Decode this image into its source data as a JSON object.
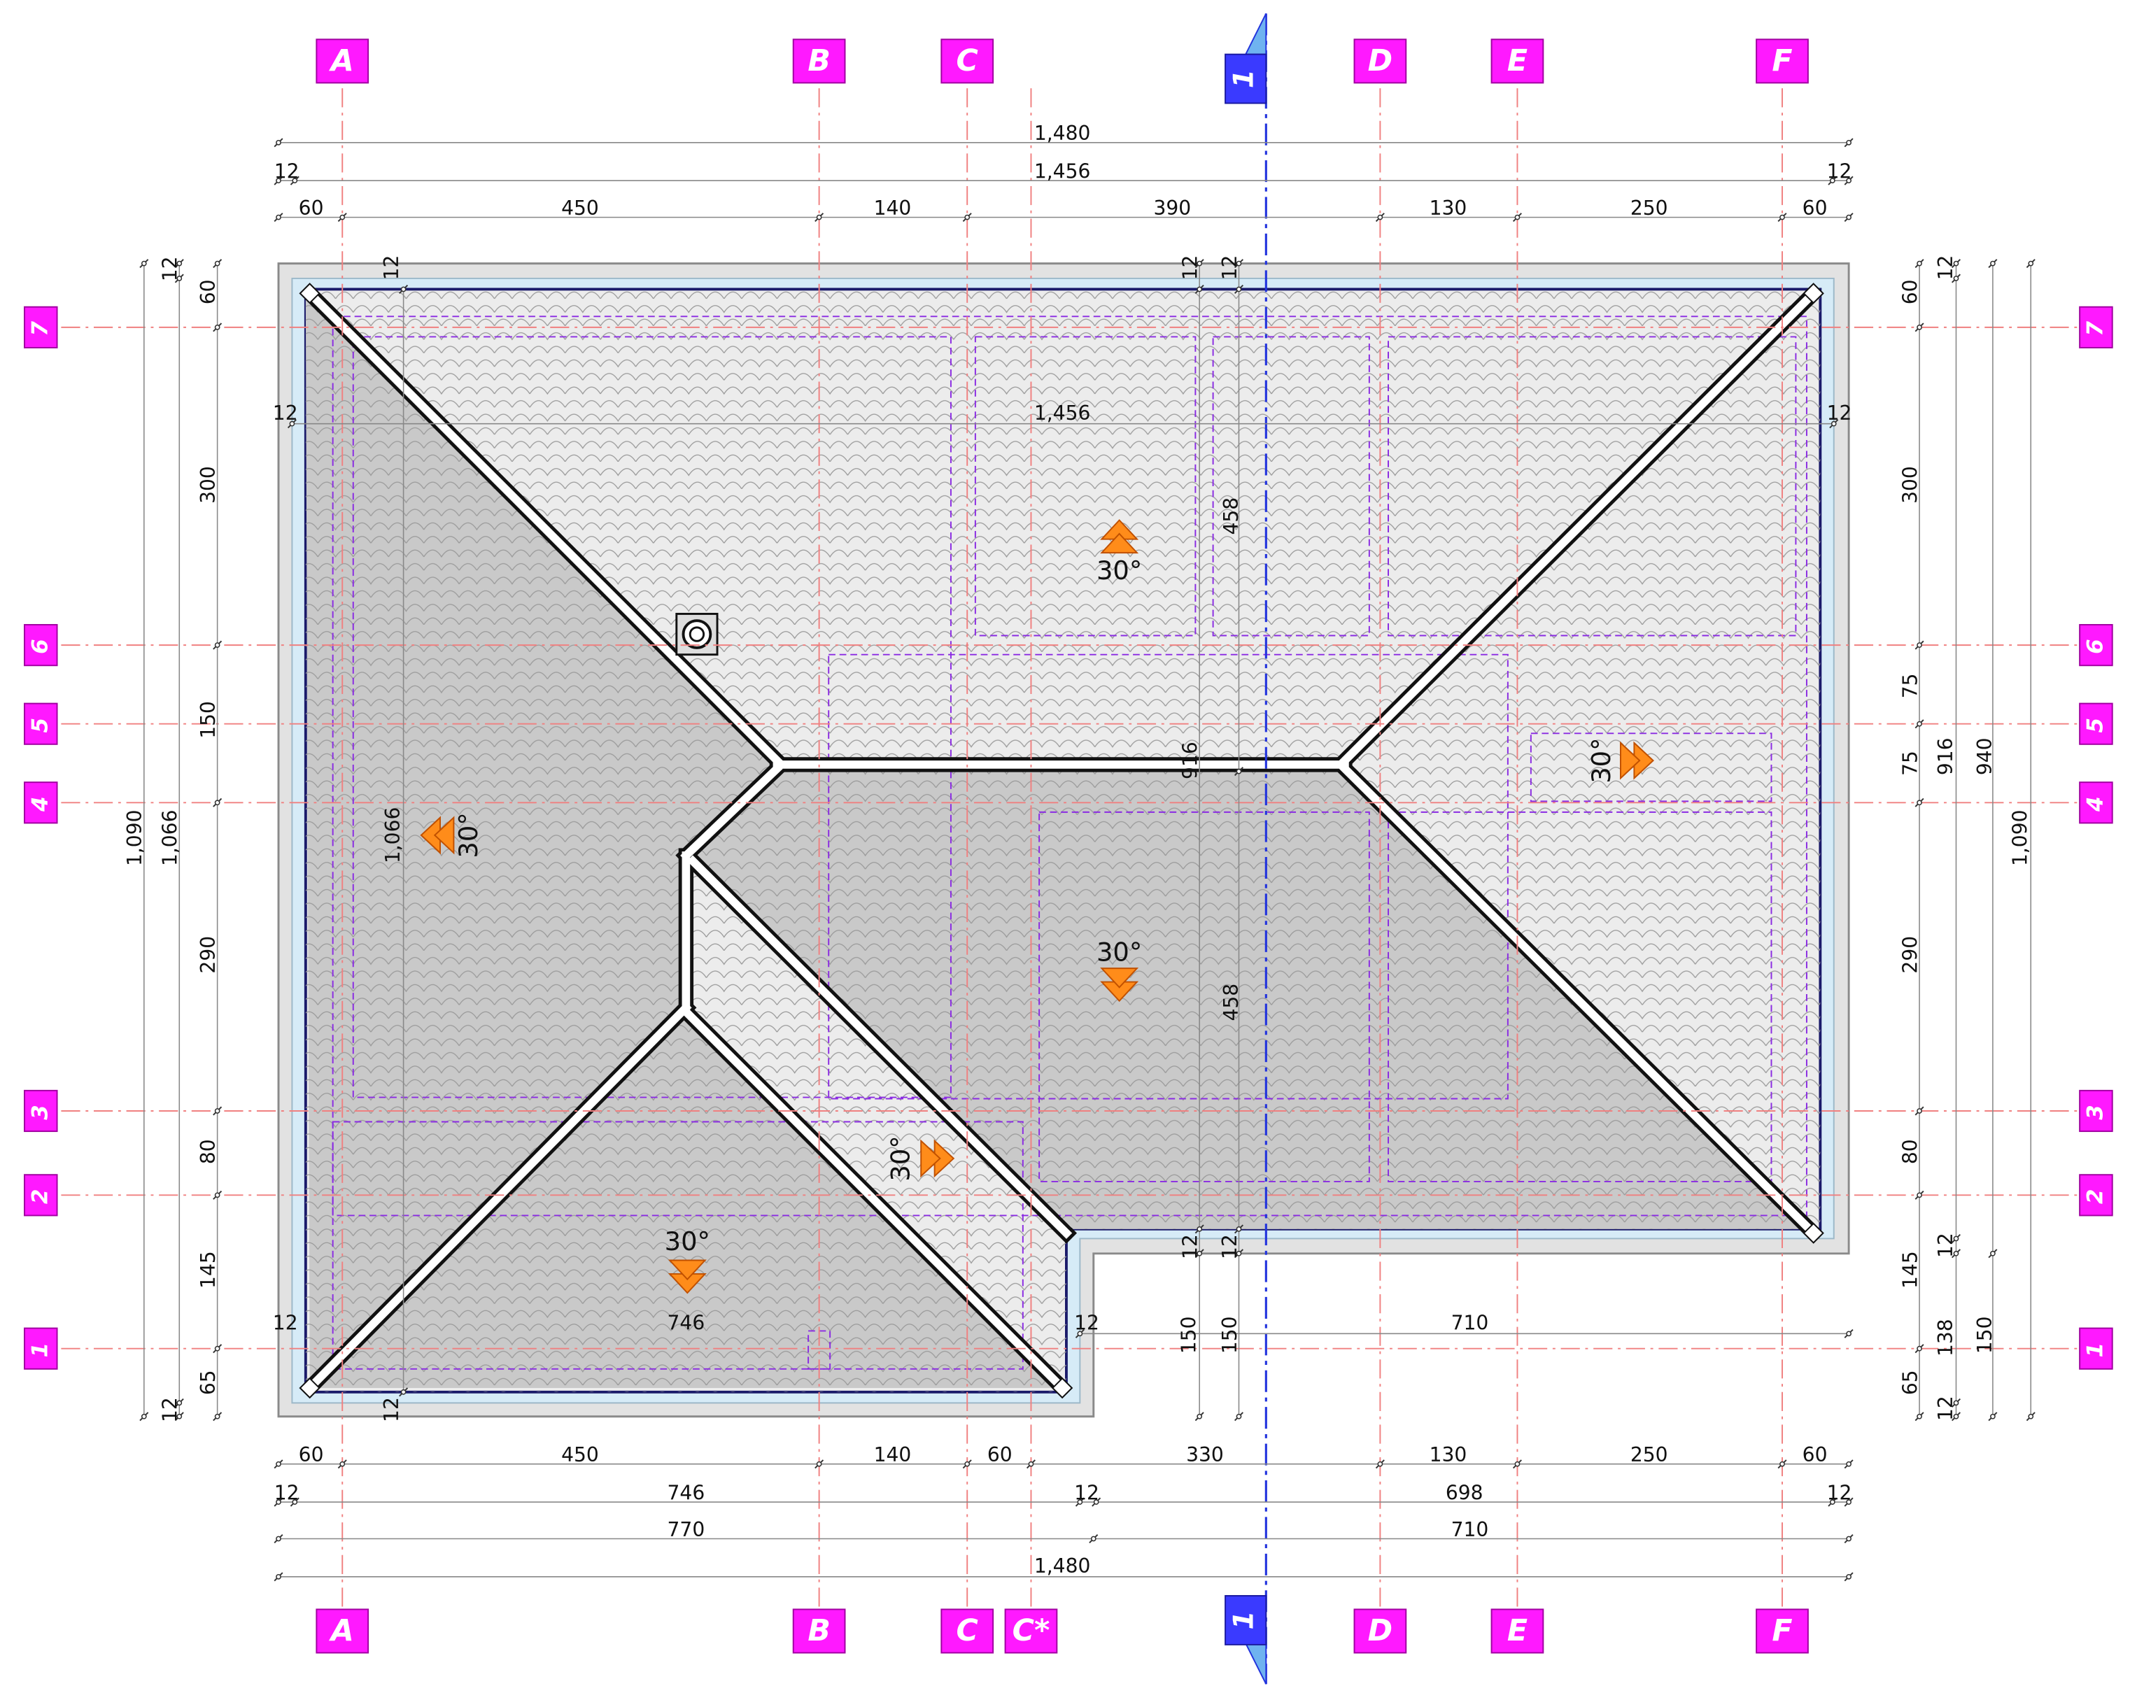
{
  "grid": {
    "columns_top": [
      "A",
      "B",
      "C",
      "D",
      "E",
      "F"
    ],
    "columns_bottom": [
      "A",
      "B",
      "C",
      "C*",
      "D",
      "E",
      "F"
    ],
    "rows": [
      "7",
      "6",
      "5",
      "4",
      "3",
      "2",
      "1"
    ]
  },
  "section_marker": "1",
  "dimensions": {
    "top": [
      [
        "1,480"
      ],
      [
        "12",
        "1,456",
        "12"
      ],
      [
        "60",
        "450",
        "140",
        "390",
        "130",
        "250",
        "60"
      ]
    ],
    "bottom": [
      [
        "60",
        "450",
        "140",
        "60",
        "330",
        "130",
        "250",
        "60"
      ],
      [
        "12",
        "746",
        "12",
        "698",
        "12"
      ],
      [
        "770",
        "710"
      ],
      [
        "1,480"
      ]
    ],
    "left": [
      [
        "1,090"
      ],
      [
        "12",
        "1,066",
        "12"
      ],
      [
        "60",
        "300",
        "150",
        "290",
        "80",
        "145",
        "65"
      ]
    ],
    "right": [
      [
        "60",
        "300",
        "75",
        "75",
        "290",
        "80",
        "145",
        "65"
      ],
      [
        "12",
        "916",
        "12",
        "138",
        "12"
      ],
      [
        "940",
        "150"
      ],
      [
        "1,090"
      ]
    ],
    "interior": [
      "1,456",
      "458",
      "458",
      "916",
      "1,066",
      "746",
      "710",
      "12",
      "12",
      "12",
      "12",
      "12",
      "12",
      "12",
      "12",
      "12",
      "12",
      "150",
      "150"
    ]
  },
  "slopes": [
    "30°",
    "30°",
    "30°",
    "30°",
    "30°",
    "30°"
  ]
}
